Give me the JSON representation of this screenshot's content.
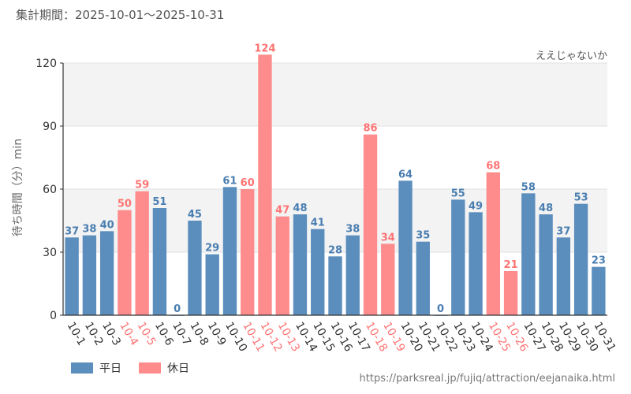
{
  "header": {
    "period": "集計期間：2025-10-01～2025-10-31",
    "attraction": "ええじゃないか"
  },
  "footer": {
    "source": "https://parksreal.jp/fujiq/attraction/eejanaika.html"
  },
  "colors": {
    "weekday": "#5b8ebd",
    "holiday": "#ff8c8c",
    "weekday_text": "#4a7eb0",
    "holiday_text": "#ff7373"
  },
  "legend": {
    "weekday": "平日",
    "holiday": "休日"
  },
  "chart_data": {
    "type": "bar",
    "title": "",
    "xlabel": "",
    "ylabel": "待ち時間（分）min",
    "ylim": [
      0,
      120
    ],
    "yticks": [
      0,
      30,
      60,
      90,
      120
    ],
    "categories": [
      "10-1",
      "10-2",
      "10-3",
      "10-4",
      "10-5",
      "10-6",
      "10-7",
      "10-8",
      "10-9",
      "10-10",
      "10-11",
      "10-12",
      "10-13",
      "10-14",
      "10-15",
      "10-16",
      "10-17",
      "10-18",
      "10-19",
      "10-20",
      "10-21",
      "10-22",
      "10-23",
      "10-24",
      "10-25",
      "10-26",
      "10-27",
      "10-28",
      "10-29",
      "10-30",
      "10-31"
    ],
    "values": [
      37,
      38,
      40,
      50,
      59,
      51,
      0,
      45,
      29,
      61,
      60,
      124,
      47,
      48,
      41,
      28,
      38,
      86,
      34,
      64,
      35,
      0,
      55,
      49,
      68,
      21,
      58,
      48,
      37,
      53,
      23
    ],
    "day_type": [
      "weekday",
      "weekday",
      "weekday",
      "holiday",
      "holiday",
      "weekday",
      "weekday",
      "weekday",
      "weekday",
      "weekday",
      "holiday",
      "holiday",
      "holiday",
      "weekday",
      "weekday",
      "weekday",
      "weekday",
      "holiday",
      "holiday",
      "weekday",
      "weekday",
      "weekday",
      "weekday",
      "weekday",
      "holiday",
      "holiday",
      "weekday",
      "weekday",
      "weekday",
      "weekday",
      "weekday"
    ],
    "legend_placement": "bottom-left",
    "grid": true
  }
}
